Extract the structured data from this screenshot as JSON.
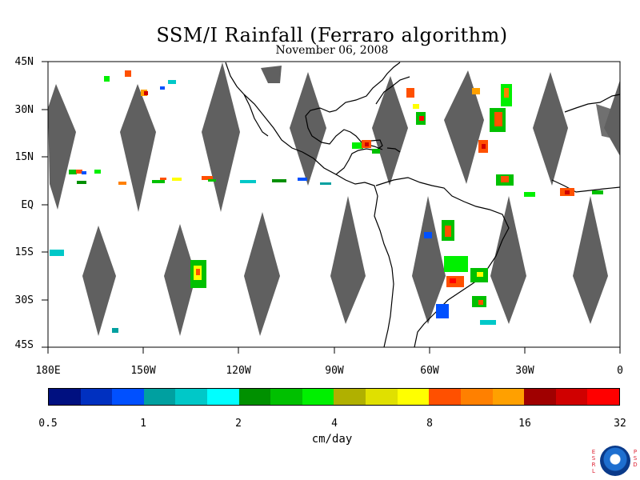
{
  "title": "SSM/I Rainfall (Ferraro algorithm)",
  "subtitle": "November 06, 2008",
  "lat_labels": [
    "45N",
    "30N",
    "15N",
    "EQ",
    "15S",
    "30S",
    "45S"
  ],
  "lon_labels": [
    "180E",
    "150W",
    "120W",
    "90W",
    "60W",
    "30W",
    "0"
  ],
  "colorbar": {
    "colors": [
      "#001080",
      "#0030c0",
      "#0050ff",
      "#00a0a0",
      "#00c8c8",
      "#00ffff",
      "#009000",
      "#00c000",
      "#00f000",
      "#b0b000",
      "#e0e000",
      "#ffff00",
      "#ff5000",
      "#ff8000",
      "#ffa000",
      "#a00000",
      "#d00000",
      "#ff0000"
    ],
    "ticks": [
      "0.5",
      "1",
      "2",
      "4",
      "8",
      "16",
      "32"
    ],
    "unit": "cm/day"
  },
  "logo_side_letters": {
    "left": "ESRL",
    "right": "PSD"
  },
  "colors": {
    "swath_gap": "#606060",
    "coast": "#000000",
    "background": "#ffffff"
  }
}
